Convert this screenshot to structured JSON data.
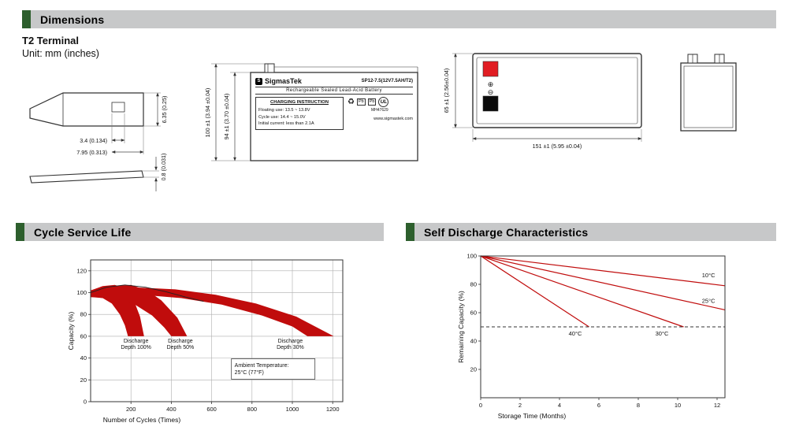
{
  "sections": {
    "dimensions": {
      "title": "Dimensions",
      "subtitle": "T2 Terminal",
      "unit": "Unit: mm (inches)"
    },
    "cycle": {
      "title": "Cycle Service Life"
    },
    "self_discharge": {
      "title": "Self Discharge Characteristics"
    }
  },
  "terminal_drawing": {
    "dim_tab_width": "3.4 (0.134)",
    "dim_tab_pitch": "7.95 (0.313)",
    "dim_tab_height": "6.35 (0.25)",
    "dim_tab_thickness": "0.8 (0.031)"
  },
  "front_view": {
    "brand": "SigmasTek",
    "model": "SP12-7.5(12V7.5AH/T2)",
    "battery_type": "Rechargeable Sealed Lead-Acid Battery",
    "charging_title": "CHARGING INSTRUCTION",
    "charging_lines": [
      "Floating use: 13.5 ~ 13.8V",
      "Cycle use: 14.4 ~ 15.0V",
      "Initial current: less than 2.1A"
    ],
    "pb_label": "Pb",
    "ul_label": "UL",
    "ul_code": "MH47629",
    "website": "www.sigmastek.com",
    "dim_height_outer": "100 ±1 (3.94 ±0.04)",
    "dim_height_case": "94 ±1 (3.70 ±0.04)"
  },
  "top_view": {
    "dim_width": "65 ±1 (2.56±0.04)",
    "dim_length": "151 ±1 (5.95 ±0.04)",
    "plus_symbol": "⊕",
    "minus_symbol": "⊖"
  },
  "chart_data": [
    {
      "type": "area",
      "title": "Cycle Service Life",
      "xlabel": "Number of Cycles (Times)",
      "ylabel": "Capacity (%)",
      "xlim": [
        0,
        1250
      ],
      "ylim": [
        0,
        130
      ],
      "xticks": [
        200,
        400,
        600,
        800,
        1000,
        1200
      ],
      "yticks": [
        0,
        20,
        40,
        60,
        80,
        100,
        120
      ],
      "grid": true,
      "legend": "none",
      "band_color": "#c00c0c",
      "bands": [
        {
          "name": "Discharge Depth 100%",
          "upper": [
            [
              0,
              102
            ],
            [
              60,
              106
            ],
            [
              120,
              107
            ],
            [
              170,
              104
            ],
            [
              210,
              95
            ],
            [
              245,
              78
            ],
            [
              265,
              60
            ]
          ],
          "lower": [
            [
              0,
              96
            ],
            [
              60,
              95
            ],
            [
              105,
              90
            ],
            [
              145,
              80
            ],
            [
              170,
              70
            ],
            [
              185,
              60
            ]
          ]
        },
        {
          "name": "Discharge Depth 50%",
          "upper": [
            [
              0,
              102
            ],
            [
              100,
              106
            ],
            [
              200,
              107
            ],
            [
              280,
              102
            ],
            [
              350,
              93
            ],
            [
              430,
              77
            ],
            [
              478,
              60
            ]
          ],
          "lower": [
            [
              0,
              96
            ],
            [
              120,
              95
            ],
            [
              220,
              89
            ],
            [
              305,
              79
            ],
            [
              365,
              68
            ],
            [
              400,
              60
            ]
          ]
        },
        {
          "name": "Discharge Depth 30%",
          "upper": [
            [
              0,
              102
            ],
            [
              200,
              105
            ],
            [
              420,
              103
            ],
            [
              620,
              98
            ],
            [
              820,
              90
            ],
            [
              1020,
              78
            ],
            [
              1205,
              60
            ]
          ],
          "lower": [
            [
              0,
              96
            ],
            [
              250,
              98
            ],
            [
              450,
              95
            ],
            [
              650,
              89
            ],
            [
              850,
              79
            ],
            [
              1000,
              69
            ],
            [
              1075,
              60
            ]
          ]
        }
      ],
      "envelope": [
        [
          0,
          100
        ],
        [
          80,
          105
        ],
        [
          170,
          107
        ],
        [
          270,
          105
        ],
        [
          370,
          101
        ],
        [
          470,
          96
        ],
        [
          560,
          92
        ]
      ],
      "annotations": [
        {
          "lines": [
            "Discharge",
            "Depth 100%"
          ],
          "x": 225,
          "y": 54
        },
        {
          "lines": [
            "Discharge",
            "Depth 50%"
          ],
          "x": 445,
          "y": 54
        },
        {
          "lines": [
            "Discharge",
            "Depth 30%"
          ],
          "x": 990,
          "y": 54
        }
      ],
      "note": {
        "lines": [
          "Ambient Temperature:",
          "25°C (77°F)"
        ],
        "x": 905,
        "y": 30
      }
    },
    {
      "type": "line",
      "title": "Self Discharge Characteristics",
      "xlabel": "Storage Time (Months)",
      "ylabel": "Remaining Capacity (%)",
      "xlim": [
        0,
        12.4
      ],
      "ylim": [
        0,
        100
      ],
      "xticks": [
        0,
        2,
        4,
        6,
        8,
        10,
        12
      ],
      "yticks": [
        20,
        40,
        60,
        80,
        100
      ],
      "grid": false,
      "legend": "inline",
      "line_color": "#c00c0c",
      "series": [
        {
          "name": "10°C",
          "points": [
            [
              0,
              100
            ],
            [
              12.4,
              79
            ]
          ]
        },
        {
          "name": "25°C",
          "points": [
            [
              0,
              100
            ],
            [
              12.4,
              62
            ]
          ]
        },
        {
          "name": "30°C",
          "points": [
            [
              0,
              100
            ],
            [
              10.3,
              50
            ]
          ]
        },
        {
          "name": "40°C",
          "points": [
            [
              0,
              100
            ],
            [
              5.5,
              50
            ]
          ]
        }
      ],
      "dashed_y": 50,
      "labels": [
        {
          "text": "10°C",
          "x": 11.9,
          "y": 85,
          "anchor": "end"
        },
        {
          "text": "25°C",
          "x": 11.9,
          "y": 67,
          "anchor": "end"
        },
        {
          "text": "40°C",
          "x": 4.8,
          "y": 44,
          "anchor": "middle"
        },
        {
          "text": "30°C",
          "x": 9.2,
          "y": 44,
          "anchor": "middle"
        }
      ]
    }
  ]
}
